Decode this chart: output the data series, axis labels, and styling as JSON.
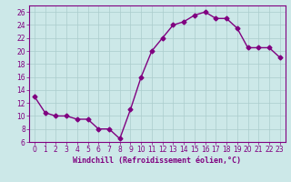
{
  "x": [
    0,
    1,
    2,
    3,
    4,
    5,
    6,
    7,
    8,
    9,
    10,
    11,
    12,
    13,
    14,
    15,
    16,
    17,
    18,
    19,
    20,
    21,
    22,
    23
  ],
  "y": [
    13,
    10.5,
    10,
    10,
    9.5,
    9.5,
    8,
    8,
    6.5,
    11,
    16,
    20,
    22,
    24,
    24.5,
    25.5,
    26,
    25,
    25,
    23.5,
    20.5,
    20.5,
    20.5,
    19
  ],
  "line_color": "#800080",
  "marker": "D",
  "marker_size": 2.5,
  "background_color": "#cce8e8",
  "grid_color": "#aacccc",
  "xlabel": "Windchill (Refroidissement éolien,°C)",
  "xlim": [
    -0.5,
    23.5
  ],
  "ylim": [
    6,
    27
  ],
  "yticks": [
    6,
    8,
    10,
    12,
    14,
    16,
    18,
    20,
    22,
    24,
    26
  ],
  "xticks": [
    0,
    1,
    2,
    3,
    4,
    5,
    6,
    7,
    8,
    9,
    10,
    11,
    12,
    13,
    14,
    15,
    16,
    17,
    18,
    19,
    20,
    21,
    22,
    23
  ],
  "tick_color": "#800080",
  "tick_fontsize": 5.5,
  "xlabel_fontsize": 6.0,
  "line_width": 1.0
}
